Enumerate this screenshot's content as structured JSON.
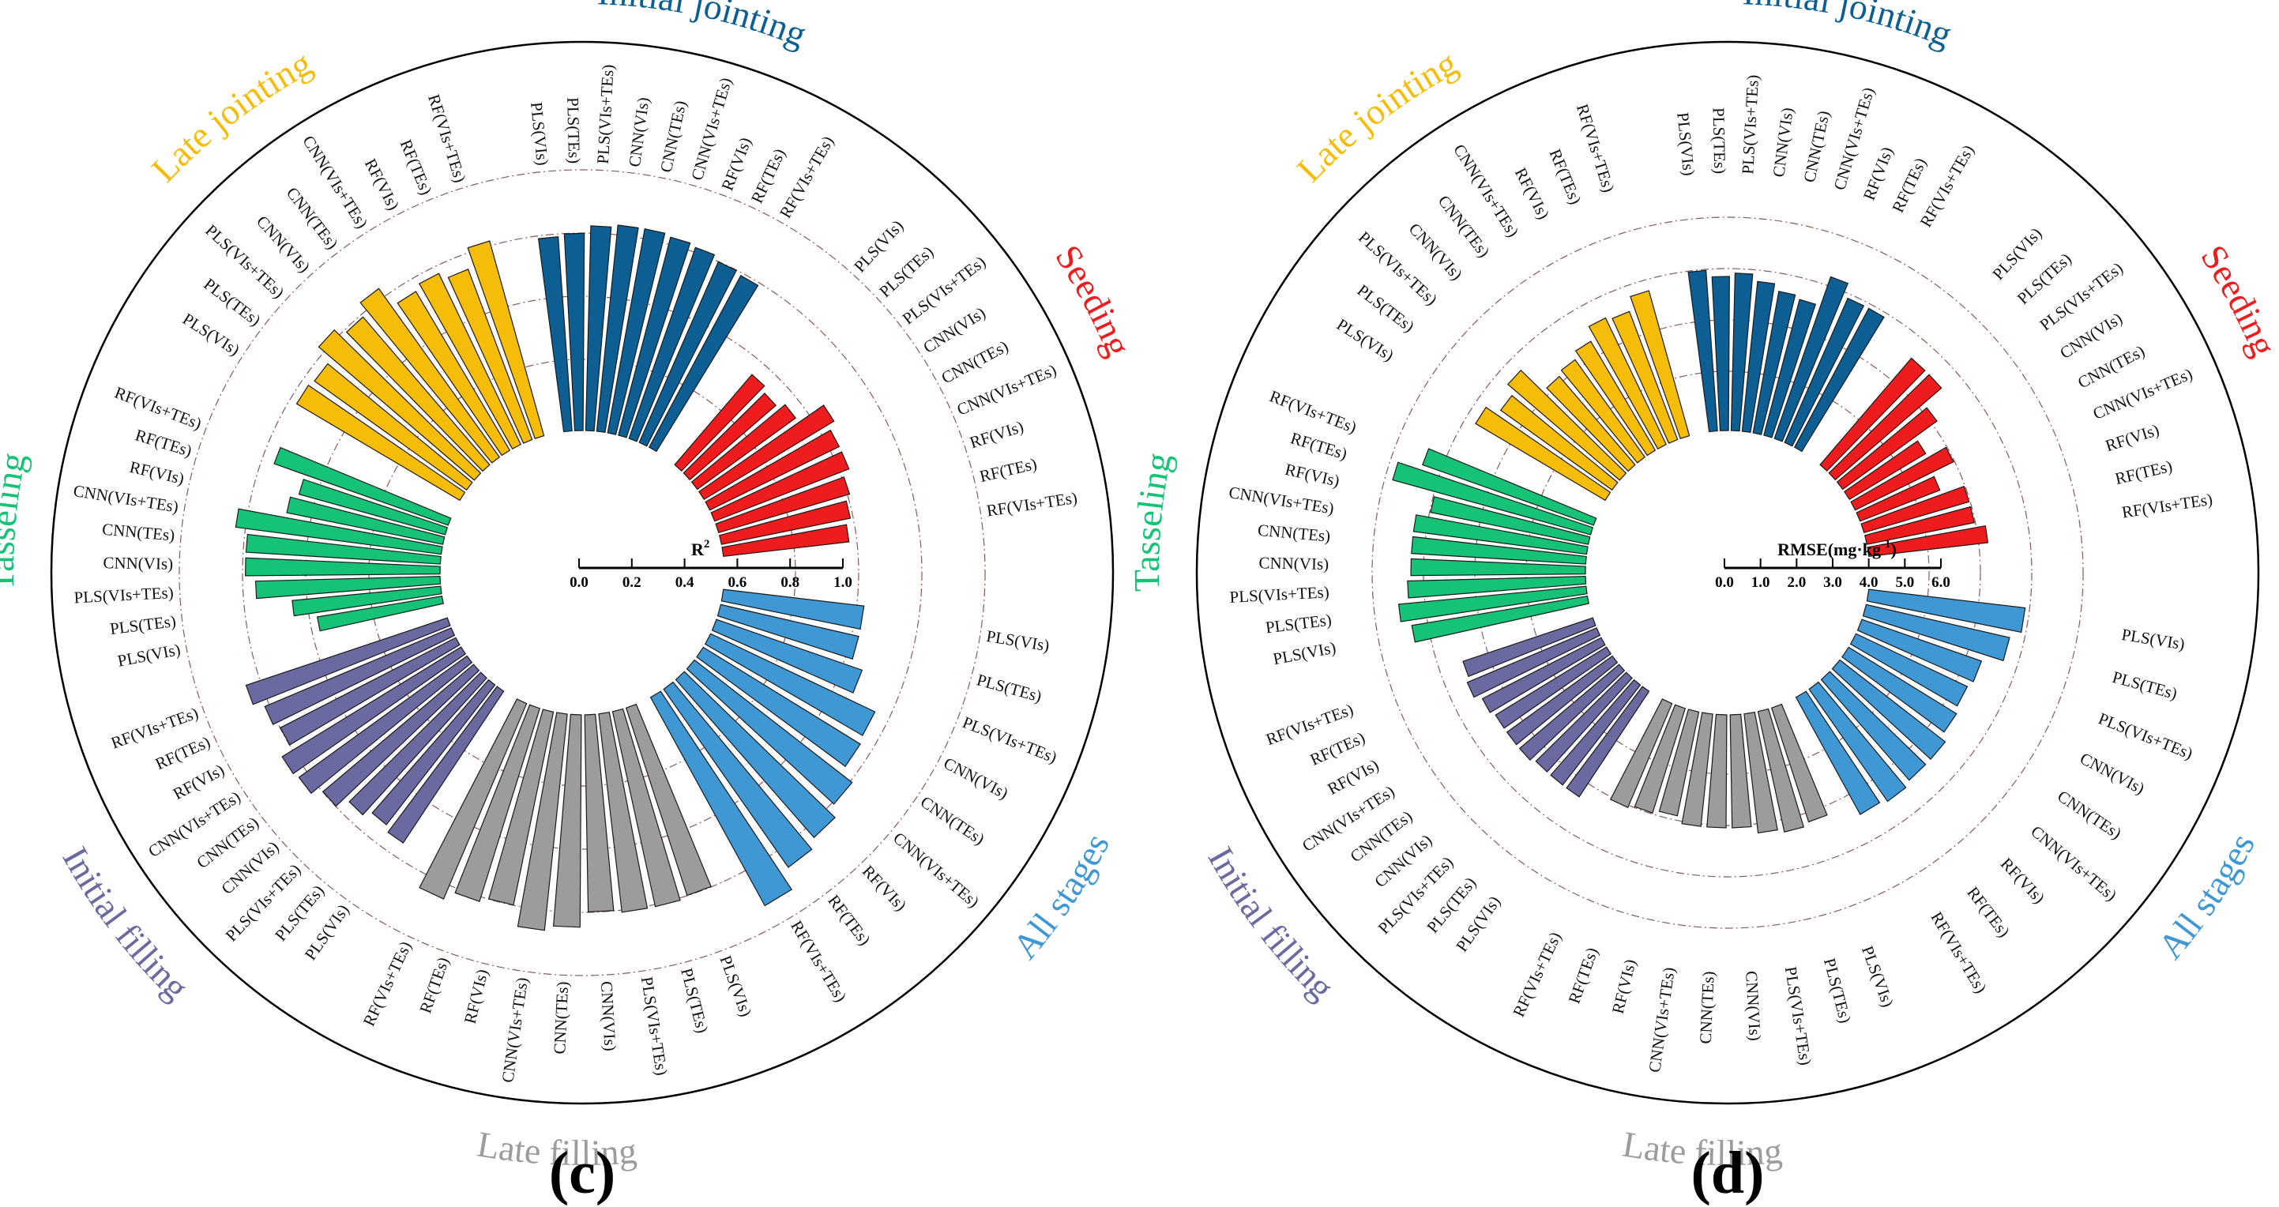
{
  "figure": {
    "panels": [
      {
        "label": "(c)",
        "metric": "R²",
        "axis_title": "R",
        "axis_title_sup": "2",
        "ticks": [
          "0.0",
          "0.2",
          "0.4",
          "0.6",
          "0.8",
          "1.0"
        ]
      },
      {
        "label": "(d)",
        "metric": "RMSE",
        "axis_title": "RMSE(mg·kg",
        "axis_title_sup": "-1",
        "axis_title_close": ")",
        "ticks": [
          "0.0",
          "1.0",
          "2.0",
          "3.0",
          "4.0",
          "5.0",
          "6.0"
        ]
      }
    ]
  },
  "colors": {
    "Seeding": "#ee1c1c",
    "Initial jointing": "#0d5f93",
    "Late jointing": "#f5bd0a",
    "Tasseling": "#16c275",
    "Initial filling": "#6a6aa0",
    "Late filling": "#9c9c9c",
    "All stages": "#3f97d3"
  },
  "chart_data": [
    {
      "type": "bar",
      "subtype": "circular-bar",
      "title": "(c)",
      "ylabel": "R²",
      "ylim": [
        0,
        1.0
      ],
      "models": [
        "PLS(VIs)",
        "PLS(TEs)",
        "PLS(VIs+TEs)",
        "CNN(VIs)",
        "CNN(TEs)",
        "CNN(VIs+TEs)",
        "RF(VIs)",
        "RF(TEs)",
        "RF(VIs+TEs)"
      ],
      "series": [
        {
          "name": "Seeding",
          "values": [
            0.47,
            0.45,
            0.48,
            0.6,
            0.57,
            0.57,
            0.54,
            0.52,
            0.5
          ]
        },
        {
          "name": "Initial jointing",
          "values": [
            0.77,
            0.78,
            0.81,
            0.82,
            0.82,
            0.81,
            0.8,
            0.78,
            0.77
          ]
        },
        {
          "name": "Late jointing",
          "values": [
            0.75,
            0.74,
            0.81,
            0.77,
            0.82,
            0.73,
            0.75,
            0.72,
            0.8
          ]
        },
        {
          "name": "Tasseling",
          "values": [
            0.5,
            0.59,
            0.73,
            0.77,
            0.77,
            0.82,
            0.63,
            0.6,
            0.73
          ]
        },
        {
          "name": "Initial filling",
          "values": [
            0.72,
            0.7,
            0.73,
            0.78,
            0.82,
            0.83,
            0.78,
            0.8,
            0.84
          ]
        },
        {
          "name": "Late filling",
          "values": [
            0.78,
            0.79,
            0.79,
            0.78,
            0.84,
            0.86,
            0.78,
            0.8,
            0.84
          ]
        },
        {
          "name": "All stages",
          "values": [
            0.56,
            0.56,
            0.61,
            0.72,
            0.73,
            0.79,
            0.83,
            0.86,
            0.94
          ]
        }
      ]
    },
    {
      "type": "bar",
      "subtype": "circular-bar",
      "title": "(d)",
      "ylabel": "RMSE(mg·kg-1)",
      "ylim": [
        0,
        6.0
      ],
      "models": [
        "PLS(VIs)",
        "PLS(TEs)",
        "PLS(VIs+TEs)",
        "CNN(VIs)",
        "CNN(TEs)",
        "CNN(VIs+TEs)",
        "RF(VIs)",
        "RF(TEs)",
        "RF(VIs+TEs)"
      ],
      "series": [
        {
          "name": "Seeding",
          "values": [
            4.1,
            4.1,
            3.4,
            2.6,
            3.2,
            2.5,
            3.2,
            3.2,
            3.5
          ]
        },
        {
          "name": "Initial jointing",
          "values": [
            4.7,
            4.5,
            4.6,
            4.4,
            4.2,
            4.1,
            5.0,
            4.6,
            4.6
          ]
        },
        {
          "name": "Late jointing",
          "values": [
            4.4,
            4.0,
            4.3,
            3.4,
            3.5,
            3.7,
            4.1,
            4.0,
            4.4
          ]
        },
        {
          "name": "Tasseling",
          "values": [
            5.2,
            5.5,
            5.2,
            5.1,
            5.1,
            5.1,
            4.7,
            6.0,
            5.3
          ]
        },
        {
          "name": "Initial filling",
          "values": [
            3.7,
            3.7,
            3.7,
            3.8,
            3.8,
            3.8,
            3.9,
            4.1,
            4.0
          ]
        },
        {
          "name": "Late filling",
          "values": [
            3.5,
            3.6,
            3.5,
            3.3,
            3.3,
            3.3,
            3.1,
            3.2,
            3.3
          ]
        },
        {
          "name": "All stages",
          "values": [
            4.6,
            4.3,
            3.7,
            3.6,
            3.7,
            3.9,
            3.9,
            4.0,
            3.9
          ]
        }
      ]
    }
  ]
}
